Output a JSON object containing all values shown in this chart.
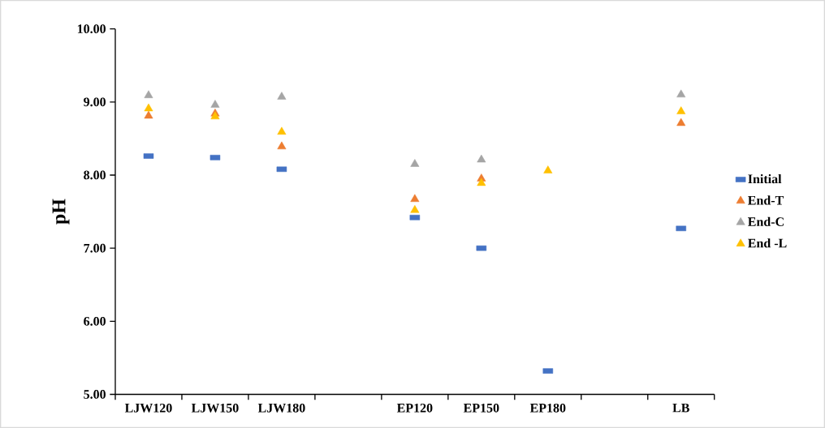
{
  "chart_data": {
    "type": "scatter",
    "ylabel": "pH",
    "categories": [
      "LJW120",
      "LJW150",
      "LJW180",
      null,
      "EP120",
      "EP150",
      "EP180",
      null,
      "LB"
    ],
    "ylim": [
      5,
      10
    ],
    "yticks": [
      {
        "value": 5,
        "label": "5.00"
      },
      {
        "value": 6,
        "label": "6.00"
      },
      {
        "value": 7,
        "label": "7.00"
      },
      {
        "value": 8,
        "label": "8.00"
      },
      {
        "value": 9,
        "label": "9.00"
      },
      {
        "value": 10,
        "label": "10.00"
      }
    ],
    "legend": "right",
    "grid": false,
    "series": [
      {
        "name": "Initial",
        "color": "#4472c4",
        "marker": "square",
        "values": [
          8.26,
          8.24,
          8.08,
          null,
          7.42,
          7.0,
          5.32,
          null,
          7.27
        ]
      },
      {
        "name": "End-T",
        "color": "#ed7d31",
        "marker": "triangle",
        "values": [
          8.81,
          8.84,
          8.39,
          null,
          7.67,
          7.95,
          null,
          null,
          8.71
        ]
      },
      {
        "name": "End-C",
        "color": "#a5a5a5",
        "marker": "triangle",
        "values": [
          9.09,
          8.96,
          9.07,
          null,
          8.15,
          8.21,
          null,
          null,
          9.1
        ]
      },
      {
        "name": "End -L",
        "color": "#ffc000",
        "marker": "triangle",
        "values": [
          8.91,
          8.8,
          8.59,
          null,
          7.52,
          7.89,
          8.06,
          null,
          8.87
        ]
      }
    ]
  }
}
